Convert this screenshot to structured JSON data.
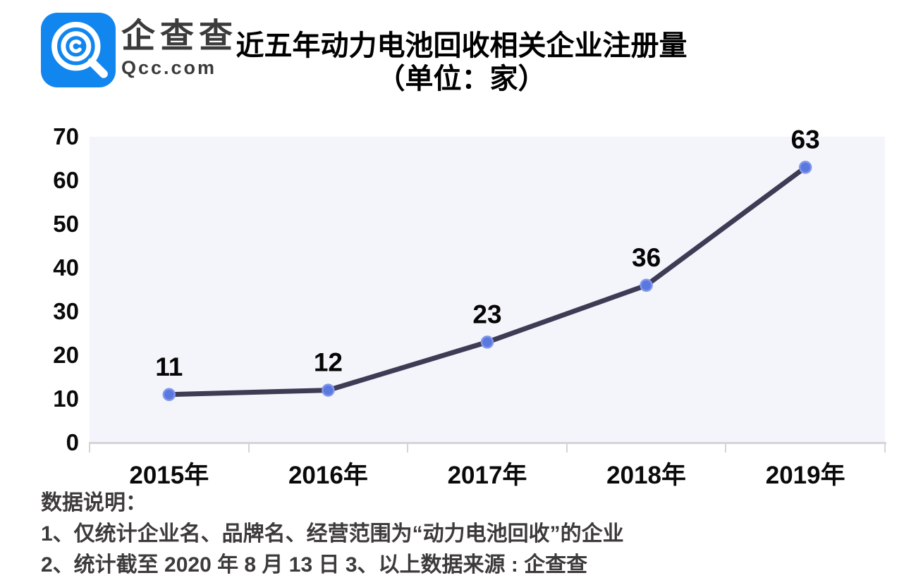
{
  "brand": {
    "name": "企查查",
    "domain": "Qcc.com",
    "logo_color": "#1186ee"
  },
  "title": {
    "line1": "近五年动力电池回收相关企业注册量",
    "line2": "（单位：家）"
  },
  "chart_data": {
    "type": "line",
    "title": "近五年动力电池回收相关企业注册量（单位：家）",
    "categories": [
      "2015年",
      "2016年",
      "2017年",
      "2018年",
      "2019年"
    ],
    "values": [
      11,
      12,
      23,
      36,
      63
    ],
    "xlabel": "",
    "ylabel": "",
    "ylim": [
      0,
      70
    ],
    "yticks": [
      0,
      10,
      20,
      30,
      40,
      50,
      60,
      70
    ],
    "grid": false,
    "legend": "none",
    "line_color": "#3e3b55",
    "marker_color": "#5b77e0",
    "marker_edge": "#8098ea",
    "plot_bg": "#f4f4fb"
  },
  "notes": {
    "heading": "数据说明：",
    "line1": "1、仅统计企业名、品牌名、经营范围为“动力电池回收”的企业",
    "line2": "2、统计截至 2020 年 8 月 13 日  3、以上数据来源 : 企查查"
  }
}
